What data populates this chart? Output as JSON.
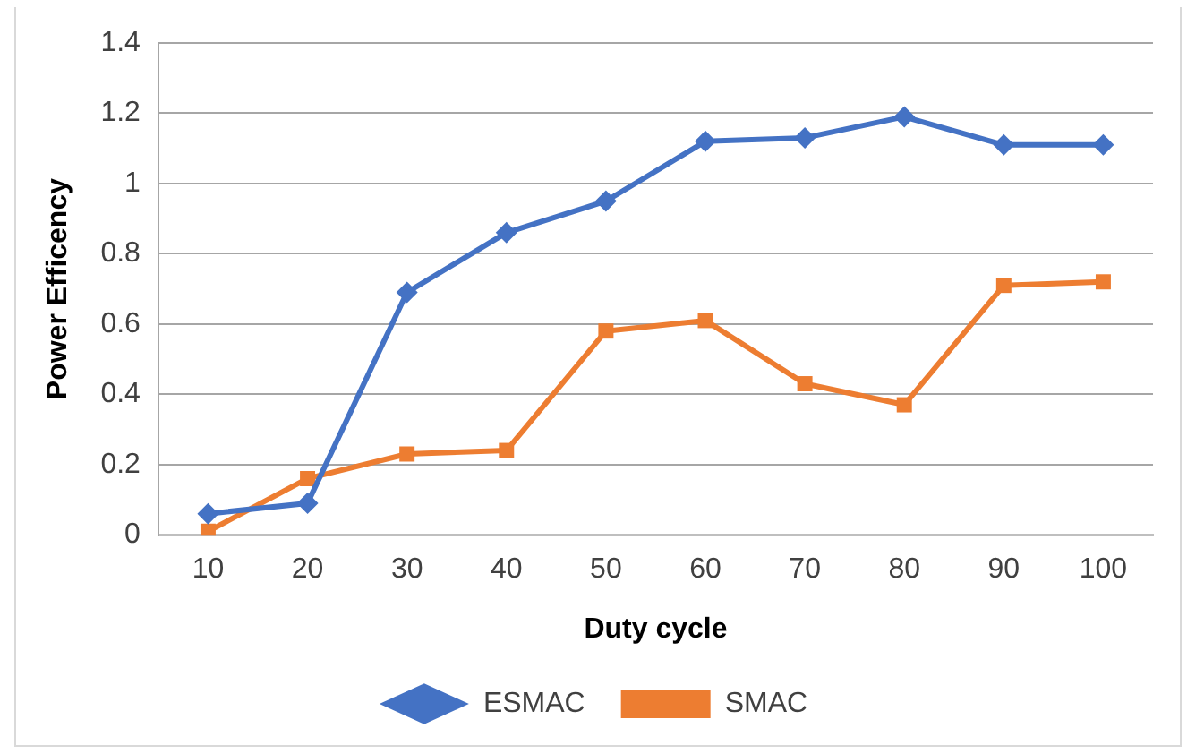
{
  "chart_data": {
    "type": "line",
    "xlabel": "Duty cycle",
    "ylabel": "Power Efficency",
    "categories": [
      "10",
      "20",
      "30",
      "40",
      "50",
      "60",
      "70",
      "80",
      "90",
      "100"
    ],
    "series": [
      {
        "name": "ESMAC",
        "color": "#4472c4",
        "marker": "diamond",
        "values": [
          0.06,
          0.09,
          0.69,
          0.86,
          0.95,
          1.12,
          1.13,
          1.19,
          1.11,
          1.11
        ]
      },
      {
        "name": "SMAC",
        "color": "#ed7d31",
        "marker": "square",
        "values": [
          0.01,
          0.16,
          0.23,
          0.24,
          0.58,
          0.61,
          0.43,
          0.37,
          0.71,
          0.72
        ]
      }
    ],
    "ylim": [
      0,
      1.4
    ],
    "yticks": [
      0,
      0.2,
      0.4,
      0.6,
      0.8,
      1,
      1.2,
      1.4
    ],
    "grid": "y",
    "legend": "bottom",
    "line_style": "solid"
  }
}
